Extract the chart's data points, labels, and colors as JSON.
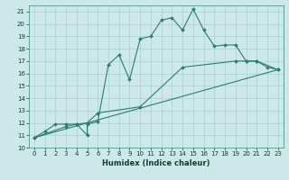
{
  "xlabel": "Humidex (Indice chaleur)",
  "bg_color": "#cce8e8",
  "line_color": "#2d7d6e",
  "grid_color": "#aad0d0",
  "xlim": [
    -0.5,
    23.5
  ],
  "ylim": [
    10,
    21.5
  ],
  "xticks": [
    0,
    1,
    2,
    3,
    4,
    5,
    6,
    7,
    8,
    9,
    10,
    11,
    12,
    13,
    14,
    15,
    16,
    17,
    18,
    19,
    20,
    21,
    22,
    23
  ],
  "yticks": [
    10,
    11,
    12,
    13,
    14,
    15,
    16,
    17,
    18,
    19,
    20,
    21
  ],
  "line1_x": [
    0,
    1,
    2,
    3,
    4,
    5,
    5,
    6,
    7,
    8,
    9,
    10,
    11,
    12,
    13,
    14,
    15,
    16,
    17,
    18,
    19,
    20,
    21,
    22,
    23
  ],
  "line1_y": [
    10.8,
    11.3,
    11.9,
    11.9,
    11.9,
    11.0,
    11.9,
    12.1,
    16.7,
    17.5,
    15.5,
    18.8,
    19.0,
    20.3,
    20.5,
    19.5,
    21.2,
    19.5,
    18.2,
    18.3,
    18.3,
    17.0,
    17.0,
    16.5,
    16.3
  ],
  "line2_x": [
    0,
    3,
    4,
    5,
    6,
    10,
    14,
    19,
    20,
    21,
    23
  ],
  "line2_y": [
    10.8,
    11.7,
    11.9,
    12.0,
    12.8,
    13.3,
    16.5,
    17.0,
    17.0,
    17.0,
    16.3
  ],
  "line3_x": [
    0,
    23
  ],
  "line3_y": [
    10.8,
    16.3
  ],
  "xlabel_fontsize": 6.0,
  "tick_fontsize": 5.0,
  "linewidth": 0.8,
  "markersize": 2.0
}
